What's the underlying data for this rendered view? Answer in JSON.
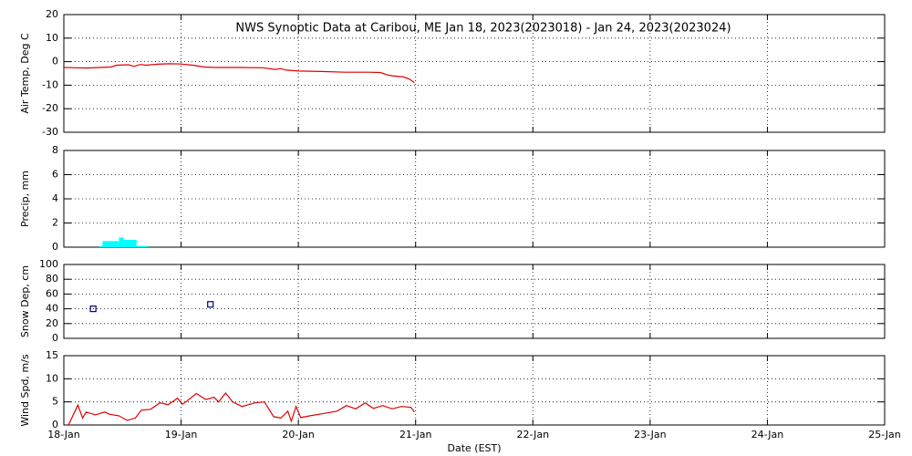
{
  "chart_data": [
    {
      "type": "line",
      "title": "NWS Synoptic Data at Caribou, ME   Jan 18, 2023(2023018) - Jan 24, 2023(2023024)",
      "y_label": "Air Temp, Deg C",
      "color": "#e00000",
      "x": [
        0,
        0.1,
        0.2,
        0.3,
        0.4,
        0.45,
        0.55,
        0.6,
        0.65,
        0.7,
        0.8,
        0.9,
        1.0,
        1.1,
        1.2,
        1.3,
        1.5,
        1.7,
        1.8,
        1.85,
        1.9,
        2.0,
        2.2,
        2.4,
        2.6,
        2.7,
        2.75,
        2.8,
        2.9,
        2.95,
        2.99
      ],
      "values": [
        -2.5,
        -2.6,
        -2.7,
        -2.5,
        -2.3,
        -1.5,
        -1.3,
        -2.0,
        -1.2,
        -1.5,
        -1.1,
        -0.9,
        -1.0,
        -1.5,
        -2.3,
        -2.5,
        -2.5,
        -2.6,
        -3.3,
        -3.0,
        -3.6,
        -4.0,
        -4.2,
        -4.5,
        -4.5,
        -4.6,
        -5.5,
        -6.0,
        -6.5,
        -7.5,
        -9.0
      ],
      "xlim": [
        0,
        7
      ],
      "xticks": [
        0,
        1,
        2,
        3,
        4,
        5,
        6,
        7
      ],
      "ylim": [
        -30,
        20
      ],
      "yticks": [
        -30,
        -20,
        -10,
        0,
        10,
        20
      ],
      "grid": true
    },
    {
      "type": "histogram",
      "y_label": "Precip, mm",
      "color": "#00ffff",
      "bins": [
        0.3,
        0.33,
        0.47,
        0.51,
        0.62,
        0.72
      ],
      "values": [
        0.1,
        0.5,
        0.8,
        0.6,
        0.1
      ],
      "xlim": [
        0,
        7
      ],
      "xticks": [
        0,
        1,
        2,
        3,
        4,
        5,
        6,
        7
      ],
      "ylim": [
        0,
        8
      ],
      "yticks": [
        0,
        2,
        4,
        6,
        8
      ],
      "grid": true
    },
    {
      "type": "scatter",
      "y_label": "Snow Dep, cm",
      "color": "#000080",
      "x": [
        0.25,
        1.25
      ],
      "values": [
        40,
        46
      ],
      "xlim": [
        0,
        7
      ],
      "xticks": [
        0,
        1,
        2,
        3,
        4,
        5,
        6,
        7
      ],
      "ylim": [
        0,
        100
      ],
      "yticks": [
        0,
        20,
        40,
        60,
        80,
        100
      ],
      "grid": true
    },
    {
      "type": "line",
      "y_label": "Wind Spd, m/s",
      "x_label": "Date (EST)",
      "color": "#e00000",
      "x": [
        0.04,
        0.12,
        0.16,
        0.19,
        0.27,
        0.35,
        0.39,
        0.47,
        0.54,
        0.61,
        0.66,
        0.74,
        0.82,
        0.89,
        0.97,
        1.01,
        1.05,
        1.13,
        1.21,
        1.28,
        1.32,
        1.38,
        1.44,
        1.52,
        1.63,
        1.71,
        1.79,
        1.85,
        1.91,
        1.94,
        1.98,
        2.02,
        2.1,
        2.22,
        2.33,
        2.41,
        2.49,
        2.57,
        2.64,
        2.72,
        2.8,
        2.88,
        2.96,
        2.99
      ],
      "values": [
        0,
        4.3,
        1.5,
        2.8,
        2.2,
        2.8,
        2.3,
        2.0,
        1.0,
        1.5,
        3.2,
        3.4,
        4.8,
        4.4,
        5.8,
        4.5,
        5.2,
        6.8,
        5.5,
        6.0,
        5.0,
        6.9,
        5.0,
        4.0,
        4.8,
        5.0,
        1.8,
        1.5,
        3.0,
        0.8,
        4.0,
        1.6,
        2.0,
        2.5,
        3.0,
        4.2,
        3.5,
        4.8,
        3.6,
        4.2,
        3.5,
        4.0,
        3.8,
        2.8
      ],
      "xlim": [
        0,
        7
      ],
      "xticks": [
        {
          "value": 0,
          "label": "18-Jan"
        },
        {
          "value": 1,
          "label": "19-Jan"
        },
        {
          "value": 2,
          "label": "20-Jan"
        },
        {
          "value": 3,
          "label": "21-Jan"
        },
        {
          "value": 4,
          "label": "22-Jan"
        },
        {
          "value": 5,
          "label": "23-Jan"
        },
        {
          "value": 6,
          "label": "24-Jan"
        },
        {
          "value": 7,
          "label": "25-Jan"
        }
      ],
      "ylim": [
        0,
        15
      ],
      "yticks": [
        0,
        5,
        10,
        15
      ],
      "grid": true
    }
  ]
}
